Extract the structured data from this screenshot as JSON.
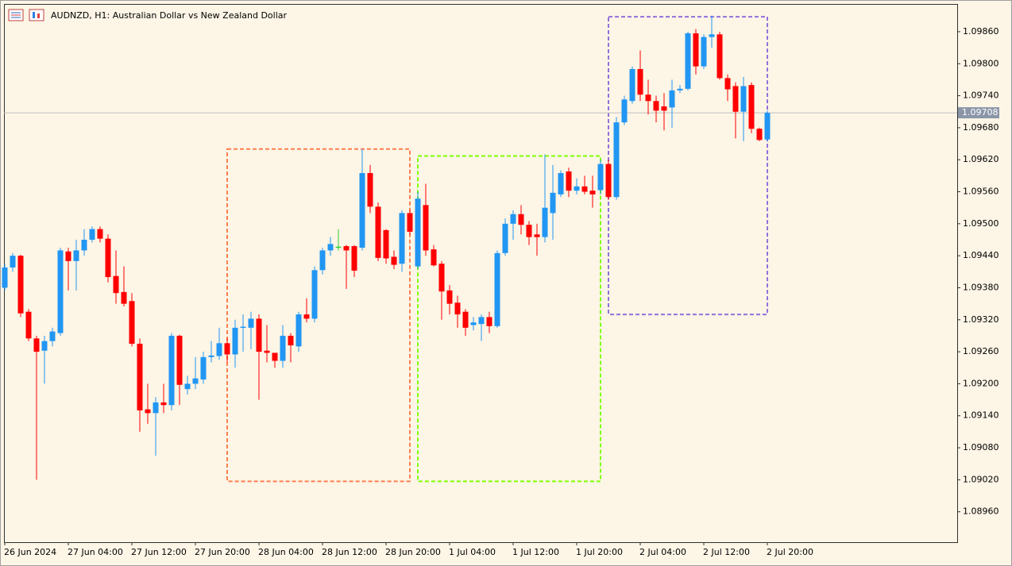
{
  "chart_data": {
    "type": "candlestick",
    "title": "AUDNZD, H1:  Australian Dollar vs New Zealand Dollar",
    "categories": [
      "26 Jun 2024",
      null,
      null,
      null,
      null,
      null,
      null,
      null,
      "27 Jun 04:00",
      null,
      null,
      null,
      null,
      null,
      null,
      null,
      "27 Jun 12:00",
      null,
      null,
      null,
      null,
      null,
      null,
      null,
      "27 Jun 20:00",
      null,
      null,
      null,
      null,
      null,
      null,
      null,
      "28 Jun 04:00",
      null,
      null,
      null,
      null,
      null,
      null,
      null,
      "28 Jun 12:00",
      null,
      null,
      null,
      null,
      null,
      null,
      null,
      "28 Jun 20:00",
      null,
      null,
      null,
      null,
      null,
      null,
      null,
      "1 Jul 04:00",
      null,
      null,
      null,
      null,
      null,
      null,
      null,
      "1 Jul 12:00",
      null,
      null,
      null,
      null,
      null,
      null,
      null,
      "1 Jul 20:00",
      null,
      null,
      null,
      null,
      null,
      null,
      null,
      "2 Jul 04:00",
      null,
      null,
      null,
      null,
      null,
      null,
      null,
      "2 Jul 12:00",
      null,
      null,
      null,
      null,
      null,
      null,
      null,
      "2 Jul 20:00"
    ],
    "open": [
      1.0938,
      1.09418,
      1.0944,
      1.09335,
      1.09285,
      1.09262,
      1.0928,
      1.09295,
      1.09448,
      1.0943,
      1.0945,
      1.0947,
      1.0949,
      1.09472,
      1.09402,
      1.09372,
      1.09355,
      1.09275,
      1.09152,
      1.09145,
      1.09165,
      1.0916,
      1.0929,
      1.0919,
      1.092,
      1.09208,
      1.0925,
      1.09252,
      1.09276,
      1.09255,
      1.09305,
      1.09305,
      1.09322,
      1.09262,
      1.09258,
      1.09243,
      1.0929,
      1.0927,
      1.0933,
      1.09322,
      1.09413,
      1.0945,
      1.09457,
      1.09458,
      1.09458,
      1.09455,
      1.09595,
      1.09532,
      1.09488,
      1.09438,
      1.09425,
      1.0952,
      1.0942,
      1.09535,
      1.09452,
      1.09425,
      1.09375,
      1.09352,
      1.09335,
      1.0931,
      1.09312,
      1.09325,
      1.09308,
      1.09445,
      1.095,
      1.09518,
      1.09498,
      1.0948,
      1.09475,
      1.0952,
      1.09555,
      1.09598,
      1.09562,
      1.0957,
      1.09562,
      1.09563,
      1.09612,
      1.0955,
      1.0969,
      1.0973,
      1.0979,
      1.09742,
      1.0973,
      1.0972,
      1.09718,
      1.0975,
      1.09753,
      1.09857,
      1.09795,
      1.0985,
      1.09855,
      1.09773,
      1.09758,
      1.0971,
      1.0976,
      1.09678,
      1.09658
    ],
    "high": [
      1.09425,
      1.09445,
      1.09442,
      1.0934,
      1.0929,
      1.0929,
      1.09305,
      1.09455,
      1.09455,
      1.0947,
      1.0949,
      1.09495,
      1.09495,
      1.0948,
      1.0945,
      1.0942,
      1.0937,
      1.09285,
      1.092,
      1.09175,
      1.092,
      1.09295,
      1.09292,
      1.09215,
      1.0925,
      1.0926,
      1.0928,
      1.09305,
      1.09285,
      1.0932,
      1.0933,
      1.09335,
      1.0933,
      1.0931,
      1.09255,
      1.0931,
      1.09295,
      1.09335,
      1.0936,
      1.0942,
      1.09455,
      1.09475,
      1.0949,
      1.0946,
      1.0946,
      1.0964,
      1.0961,
      1.0954,
      1.0949,
      1.0945,
      1.09525,
      1.09525,
      1.0956,
      1.09575,
      1.0946,
      1.0943,
      1.09385,
      1.09365,
      1.0934,
      1.09325,
      1.0933,
      1.09335,
      1.0945,
      1.0951,
      1.09525,
      1.09535,
      1.09505,
      1.095,
      1.0963,
      1.0961,
      1.096,
      1.09605,
      1.09585,
      1.0959,
      1.0959,
      1.0962,
      1.0962,
      1.097,
      1.0974,
      1.09795,
      1.09825,
      1.0977,
      1.0974,
      1.09745,
      1.0977,
      1.0976,
      1.0986,
      1.09865,
      1.09855,
      1.0989,
      1.0986,
      1.0978,
      1.09765,
      1.09775,
      1.09765,
      1.0968,
      1.09712
    ],
    "low": [
      1.09375,
      1.0941,
      1.09325,
      1.0928,
      1.0902,
      1.092,
      1.0927,
      1.0929,
      1.09375,
      1.09375,
      1.0944,
      1.09465,
      1.09465,
      1.0939,
      1.0935,
      1.09345,
      1.0927,
      1.0911,
      1.09125,
      1.09065,
      1.09145,
      1.0915,
      1.0916,
      1.0918,
      1.0919,
      1.092,
      1.0924,
      1.09245,
      1.0924,
      1.0923,
      1.0926,
      1.09265,
      1.0917,
      1.0924,
      1.0923,
      1.0923,
      1.0924,
      1.0926,
      1.09315,
      1.09315,
      1.09405,
      1.0944,
      1.0945,
      1.09378,
      1.094,
      1.0945,
      1.0952,
      1.0943,
      1.09425,
      1.09415,
      1.0941,
      1.0948,
      1.09415,
      1.0944,
      1.0942,
      1.0932,
      1.0933,
      1.09305,
      1.0929,
      1.093,
      1.0928,
      1.09295,
      1.09305,
      1.0944,
      1.0947,
      1.0948,
      1.0946,
      1.0944,
      1.09465,
      1.0947,
      1.0955,
      1.0955,
      1.09555,
      1.09555,
      1.0953,
      1.09555,
      1.09545,
      1.09545,
      1.09685,
      1.09725,
      1.0973,
      1.09705,
      1.0969,
      1.09675,
      1.0968,
      1.09745,
      1.0975,
      1.0978,
      1.0979,
      1.0983,
      1.0977,
      1.0973,
      1.0966,
      1.09655,
      1.0967,
      1.09655,
      1.09655
    ],
    "close": [
      1.09418,
      1.0944,
      1.09332,
      1.09285,
      1.0926,
      1.0928,
      1.09298,
      1.0945,
      1.0943,
      1.0945,
      1.0947,
      1.0949,
      1.09472,
      1.094,
      1.0937,
      1.0935,
      1.09275,
      1.0915,
      1.09145,
      1.09165,
      1.0916,
      1.0929,
      1.09198,
      1.092,
      1.0921,
      1.0925,
      1.09253,
      1.09276,
      1.09255,
      1.09305,
      1.09307,
      1.09322,
      1.0926,
      1.09258,
      1.09243,
      1.0929,
      1.09272,
      1.0933,
      1.09322,
      1.09413,
      1.0945,
      1.09462,
      1.09457,
      1.0945,
      1.09412,
      1.09595,
      1.09532,
      1.09436,
      1.09435,
      1.09423,
      1.0952,
      1.09485,
      1.09547,
      1.0945,
      1.09422,
      1.09373,
      1.0935,
      1.0933,
      1.09305,
      1.09315,
      1.09325,
      1.09308,
      1.09445,
      1.095,
      1.09518,
      1.09498,
      1.09475,
      1.09475,
      1.0953,
      1.09558,
      1.09595,
      1.09562,
      1.0957,
      1.0956,
      1.09555,
      1.09612,
      1.0955,
      1.0969,
      1.09733,
      1.0979,
      1.09742,
      1.0973,
      1.09712,
      1.09712,
      1.0975,
      1.09753,
      1.09857,
      1.09795,
      1.0985,
      1.09855,
      1.09773,
      1.09752,
      1.0971,
      1.09758,
      1.09678,
      1.09657,
      1.09708
    ],
    "up_color": "#2196f3",
    "down_color": "#ff0000",
    "doji_color": "#32cd32",
    "ylim": [
      1.08903,
      1.09912
    ],
    "yticks": [
      {
        "value": 1.0986,
        "label": "1.09860"
      },
      {
        "value": 1.098,
        "label": "1.09800"
      },
      {
        "value": 1.0974,
        "label": "1.09740"
      },
      {
        "value": 1.0968,
        "label": "1.09680"
      },
      {
        "value": 1.0962,
        "label": "1.09620"
      },
      {
        "value": 1.0956,
        "label": "1.09560"
      },
      {
        "value": 1.095,
        "label": "1.09500"
      },
      {
        "value": 1.0944,
        "label": "1.09440"
      },
      {
        "value": 1.0938,
        "label": "1.09380"
      },
      {
        "value": 1.0932,
        "label": "1.09320"
      },
      {
        "value": 1.0926,
        "label": "1.09260"
      },
      {
        "value": 1.092,
        "label": "1.09200"
      },
      {
        "value": 1.0914,
        "label": "1.09140"
      },
      {
        "value": 1.0908,
        "label": "1.09080"
      },
      {
        "value": 1.0902,
        "label": "1.09020"
      },
      {
        "value": 1.0896,
        "label": "1.08960"
      }
    ],
    "last_price": 1.09708,
    "grid": false,
    "zones": [
      {
        "color": "#ff7f50",
        "from": 28,
        "to": 51,
        "high": 1.0964,
        "low": 1.09017
      },
      {
        "color": "#7fff00",
        "from": 52,
        "to": 75,
        "high": 1.09627,
        "low": 1.09017
      },
      {
        "color": "#9370db",
        "from": 76,
        "to": 96,
        "high": 1.09888,
        "low": 1.0933
      }
    ]
  }
}
